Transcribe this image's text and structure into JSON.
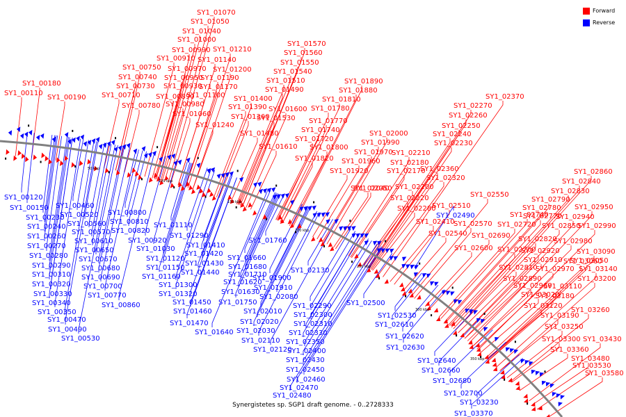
{
  "legend": {
    "forward_label": "Forward",
    "reverse_label": "Reverse",
    "forward_color": "#ff0000",
    "reverse_color": "#0000ff"
  },
  "caption": "Synergistetes sp. SGP1 draft genome. - 0..2728333",
  "scale_labels": [
    "50 kbp",
    "100 kbp",
    "150 kbp",
    "200 kbp",
    "250 kbp",
    "300 kbp",
    "350 kbp"
  ],
  "forward_genes": [
    "SY1_00110",
    "SY1_00180",
    "SY1_00190",
    "SY1_00710",
    "SY1_00730",
    "SY1_00740",
    "SY1_00750",
    "SY1_00780",
    "SY1_00890",
    "SY1_00910",
    "SY1_00930",
    "SY1_00950",
    "SY1_00970",
    "SY1_00980",
    "SY1_00990",
    "SY1_01000",
    "SY1_01040",
    "SY1_01050",
    "SY1_01060",
    "SY1_01070",
    "SY1_01100",
    "SY1_01140",
    "SY1_01170",
    "SY1_01190",
    "SY1_01200",
    "SY1_01210",
    "SY1_01240",
    "SY1_01360",
    "SY1_01390",
    "SY1_01400",
    "SY1_01480",
    "SY1_01490",
    "SY1_01510",
    "SY1_01530",
    "SY1_01540",
    "SY1_01550",
    "SY1_01560",
    "SY1_01570",
    "SY1_01600",
    "SY1_01610",
    "SY1_01720",
    "SY1_01740",
    "SY1_01770",
    "SY1_01780",
    "SY1_01800",
    "SY1_01810",
    "SY1_01820",
    "SY1_01880",
    "SY1_01890",
    "SY1_01920",
    "SY1_01960",
    "SY1_01970",
    "SY1_01990",
    "SY1_02000",
    "SY1_02040",
    "SY1_02050",
    "SY1_02170",
    "SY1_02180",
    "SY1_02200",
    "SY1_02210",
    "SY1_02220",
    "SY1_02230",
    "SY1_02240",
    "SY1_02250",
    "SY1_02260",
    "SY1_02270",
    "SY1_02280",
    "SY1_02320",
    "SY1_02360",
    "SY1_02370",
    "SY1_02410",
    "SY1_02510",
    "SY1_02540",
    "SY1_02550",
    "SY1_02570",
    "SY1_02600",
    "SY1_02690",
    "SY1_02720",
    "SY1_02740",
    "SY1_02760",
    "SY1_02770",
    "SY1_02780",
    "SY1_02790",
    "SY1_02810",
    "SY1_02820",
    "SY1_02830",
    "SY1_02840",
    "SY1_02850",
    "SY1_02860",
    "SY1_02890",
    "SY1_02910",
    "SY1_02920",
    "SY1_02940",
    "SY1_02950",
    "SY1_02960",
    "SY1_02970",
    "SY1_02980",
    "SY1_02990",
    "SY1_03020",
    "SY1_03050",
    "SY1_03060",
    "SY1_03090",
    "SY1_03110",
    "SY1_03120",
    "SY1_03140",
    "SY1_03180",
    "SY1_03190",
    "SY1_03200",
    "SY1_03250",
    "SY1_03260",
    "SY1_03300",
    "SY1_03360",
    "SY1_03430",
    "SY1_03480",
    "SY1_03530",
    "SY1_03580"
  ],
  "reverse_genes": [
    "SY1_00120",
    "SY1_00150",
    "SY1_00230",
    "SY1_00240",
    "SY1_00260",
    "SY1_00270",
    "SY1_00280",
    "SY1_00290",
    "SY1_00310",
    "SY1_00320",
    "SY1_00330",
    "SY1_00340",
    "SY1_00350",
    "SY1_00460",
    "SY1_00470",
    "SY1_00490",
    "SY1_00520",
    "SY1_00530",
    "SY1_00560",
    "SY1_00570",
    "SY1_00610",
    "SY1_00650",
    "SY1_00670",
    "SY1_00680",
    "SY1_00690",
    "SY1_00700",
    "SY1_00770",
    "SY1_00800",
    "SY1_00810",
    "SY1_00820",
    "SY1_00860",
    "SY1_00920",
    "SY1_01030",
    "SY1_01110",
    "SY1_01120",
    "SY1_01150",
    "SY1_01160",
    "SY1_01290",
    "SY1_01300",
    "SY1_01320",
    "SY1_01410",
    "SY1_01420",
    "SY1_01430",
    "SY1_01440",
    "SY1_01450",
    "SY1_01460",
    "SY1_01470",
    "SY1_01620",
    "SY1_01630",
    "SY1_01640",
    "SY1_01660",
    "SY1_01680",
    "SY1_01710",
    "SY1_01750",
    "SY1_01760",
    "SY1_01900",
    "SY1_01910",
    "SY1_02010",
    "SY1_02020",
    "SY1_02030",
    "SY1_02080",
    "SY1_02110",
    "SY1_02120",
    "SY1_02130",
    "SY1_02290",
    "SY1_02300",
    "SY1_02310",
    "SY1_02330",
    "SY1_02350",
    "SY1_02400",
    "SY1_02430",
    "SY1_02450",
    "SY1_02460",
    "SY1_02470",
    "SY1_02480",
    "SY1_02490",
    "SY1_02500",
    "SY1_02530",
    "SY1_02610",
    "SY1_02620",
    "SY1_02630",
    "SY1_02640",
    "SY1_02660",
    "SY1_02680",
    "SY1_02700",
    "SY1_03230",
    "SY1_03370"
  ]
}
